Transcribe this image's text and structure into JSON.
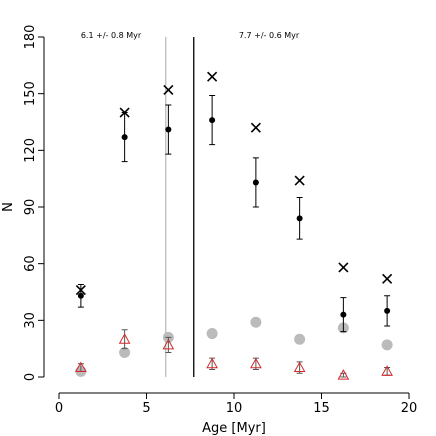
{
  "chart_data": {
    "type": "errorscatter",
    "xlabel": "Age [Myr]",
    "ylabel": "N",
    "x": [
      1.25,
      3.75,
      6.25,
      8.75,
      11.25,
      13.75,
      16.25,
      18.75
    ],
    "series": [
      {
        "marker": "circle",
        "color": "#bbbbbb",
        "values": [
          3,
          13,
          21,
          23,
          29,
          20,
          26,
          17
        ]
      },
      {
        "marker": "triangle",
        "color": "#d62728",
        "values": [
          5,
          20,
          17,
          7,
          7,
          5,
          1,
          3
        ],
        "errors": [
          2,
          5,
          4,
          3,
          3,
          3,
          1,
          2
        ]
      },
      {
        "marker": "dot",
        "color": "#000000",
        "values": [
          43,
          127,
          131,
          136,
          103,
          84,
          33,
          35
        ],
        "errors": [
          6,
          13,
          13,
          13,
          13,
          11,
          9,
          8
        ]
      },
      {
        "marker": "cross",
        "color": "#000000",
        "values": [
          46,
          140,
          152,
          159,
          132,
          104,
          58,
          52
        ]
      }
    ],
    "vlines": [
      {
        "x": 6.1,
        "color": "#bbbbbb",
        "label": "6.1 +/- 0.8 Myr"
      },
      {
        "x": 7.7,
        "color": "#000000",
        "label": "7.7 +/- 0.6 Myr"
      }
    ],
    "xlim": [
      0,
      20
    ],
    "xticks": [
      0,
      5,
      10,
      15,
      20
    ],
    "ylim": [
      0,
      180
    ],
    "yticks": [
      0,
      30,
      60,
      90,
      120,
      150,
      180
    ]
  }
}
